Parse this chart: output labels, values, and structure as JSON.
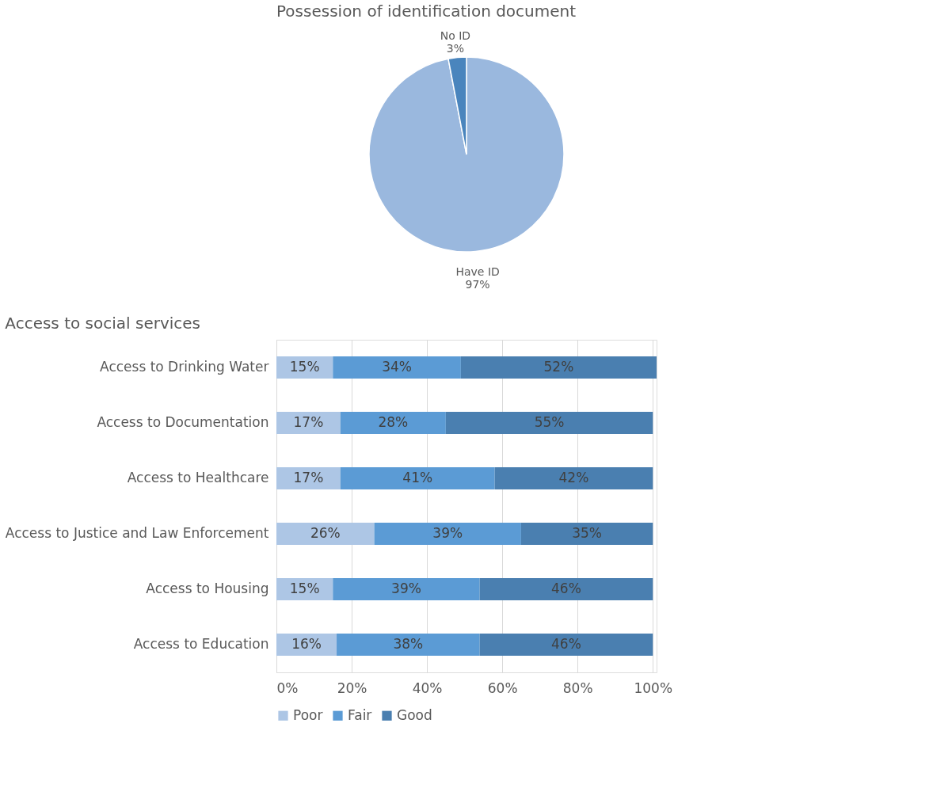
{
  "chart_data": [
    {
      "type": "pie",
      "title": "Possession of identification document",
      "categories": [
        "Have ID",
        "No ID"
      ],
      "values": [
        97,
        3
      ],
      "colors": [
        "#9ab8de",
        "#4a85bd"
      ],
      "value_labels": [
        "97%",
        "3%"
      ]
    },
    {
      "type": "bar",
      "orientation": "horizontal",
      "stacked": true,
      "title": "Access to social services",
      "categories": [
        "Access to Drinking Water",
        "Access to Documentation",
        "Access to Healthcare",
        "Access to Justice and Law Enforcement",
        "Access to Housing",
        "Access to Education"
      ],
      "series": [
        {
          "name": "Poor",
          "color": "#adc6e5",
          "values": [
            15,
            17,
            17,
            26,
            15,
            16
          ],
          "value_labels": [
            "15%",
            "17%",
            "17%",
            "26%",
            "15%",
            "16%"
          ]
        },
        {
          "name": "Fair",
          "color": "#5b9bd5",
          "values": [
            34,
            28,
            41,
            39,
            39,
            38
          ],
          "value_labels": [
            "34%",
            "28%",
            "41%",
            "39%",
            "39%",
            "38%"
          ]
        },
        {
          "name": "Good",
          "color": "#4a7fb0",
          "values": [
            52,
            55,
            42,
            35,
            46,
            46
          ],
          "value_labels": [
            "52%",
            "55%",
            "42%",
            "35%",
            "46%",
            "46%"
          ]
        }
      ],
      "xlim": [
        0,
        101
      ],
      "xticks": [
        {
          "value": 0,
          "label": "0%"
        },
        {
          "value": 20,
          "label": "20%"
        },
        {
          "value": 40,
          "label": "40%"
        },
        {
          "value": 60,
          "label": "60%"
        },
        {
          "value": 80,
          "label": "80%"
        },
        {
          "value": 100,
          "label": "100%"
        }
      ],
      "grid": "x",
      "legend": "bottom"
    }
  ]
}
